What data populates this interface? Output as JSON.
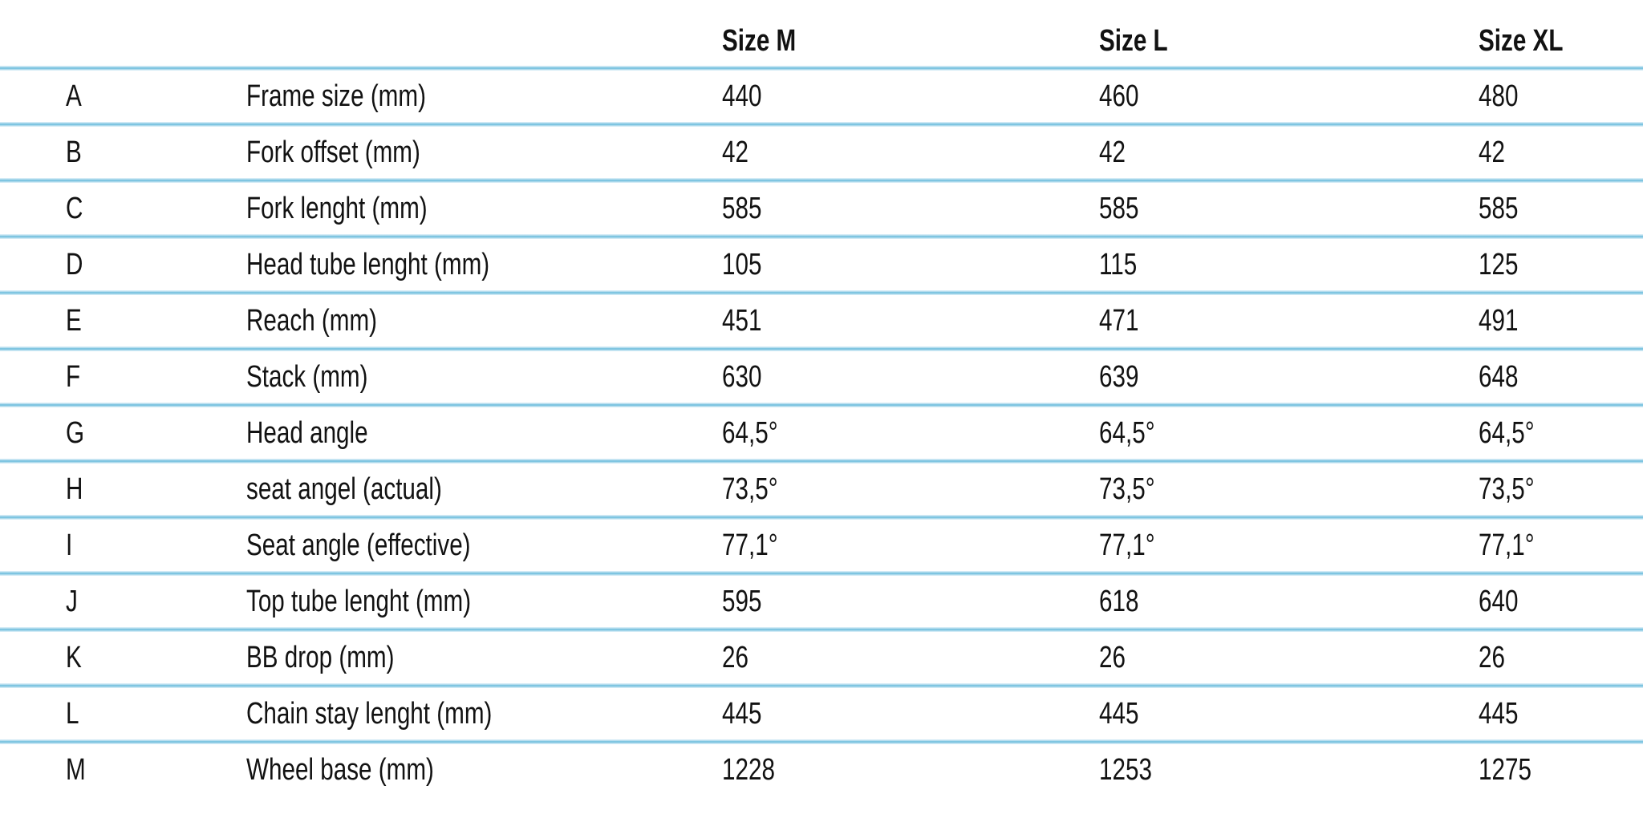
{
  "colors": {
    "background": "#ffffff",
    "text": "#121212",
    "divider_core": "#7fc5e1",
    "divider_edge": "#d7edf7"
  },
  "chart_data": {
    "type": "table",
    "columns": [
      "",
      "",
      "Size M",
      "Size L",
      "Size XL"
    ],
    "rows": [
      [
        "A",
        "Frame size (mm)",
        "440",
        "460",
        "480"
      ],
      [
        "B",
        "Fork offset (mm)",
        "42",
        "42",
        "42"
      ],
      [
        "C",
        "Fork lenght (mm)",
        "585",
        "585",
        "585"
      ],
      [
        "D",
        "Head tube lenght (mm)",
        "105",
        "115",
        "125"
      ],
      [
        "E",
        "Reach (mm)",
        "451",
        "471",
        "491"
      ],
      [
        "F",
        "Stack (mm)",
        "630",
        "639",
        "648"
      ],
      [
        "G",
        "Head angle",
        "64,5°",
        "64,5°",
        "64,5°"
      ],
      [
        "H",
        "seat angel (actual)",
        "73,5°",
        "73,5°",
        "73,5°"
      ],
      [
        "I",
        "Seat angle (effective)",
        "77,1°",
        "77,1°",
        "77,1°"
      ],
      [
        "J",
        "Top tube lenght (mm)",
        "595",
        "618",
        "640"
      ],
      [
        "K",
        "BB drop (mm)",
        "26",
        "26",
        "26"
      ],
      [
        "L",
        "Chain stay lenght (mm)",
        "445",
        "445",
        "445"
      ],
      [
        "M",
        "Wheel base (mm)",
        "1228",
        "1253",
        "1275"
      ]
    ],
    "layout": {
      "grid": "horizontal light-blue rules between rows",
      "value_alignment": "left",
      "header_style": "bold"
    }
  }
}
